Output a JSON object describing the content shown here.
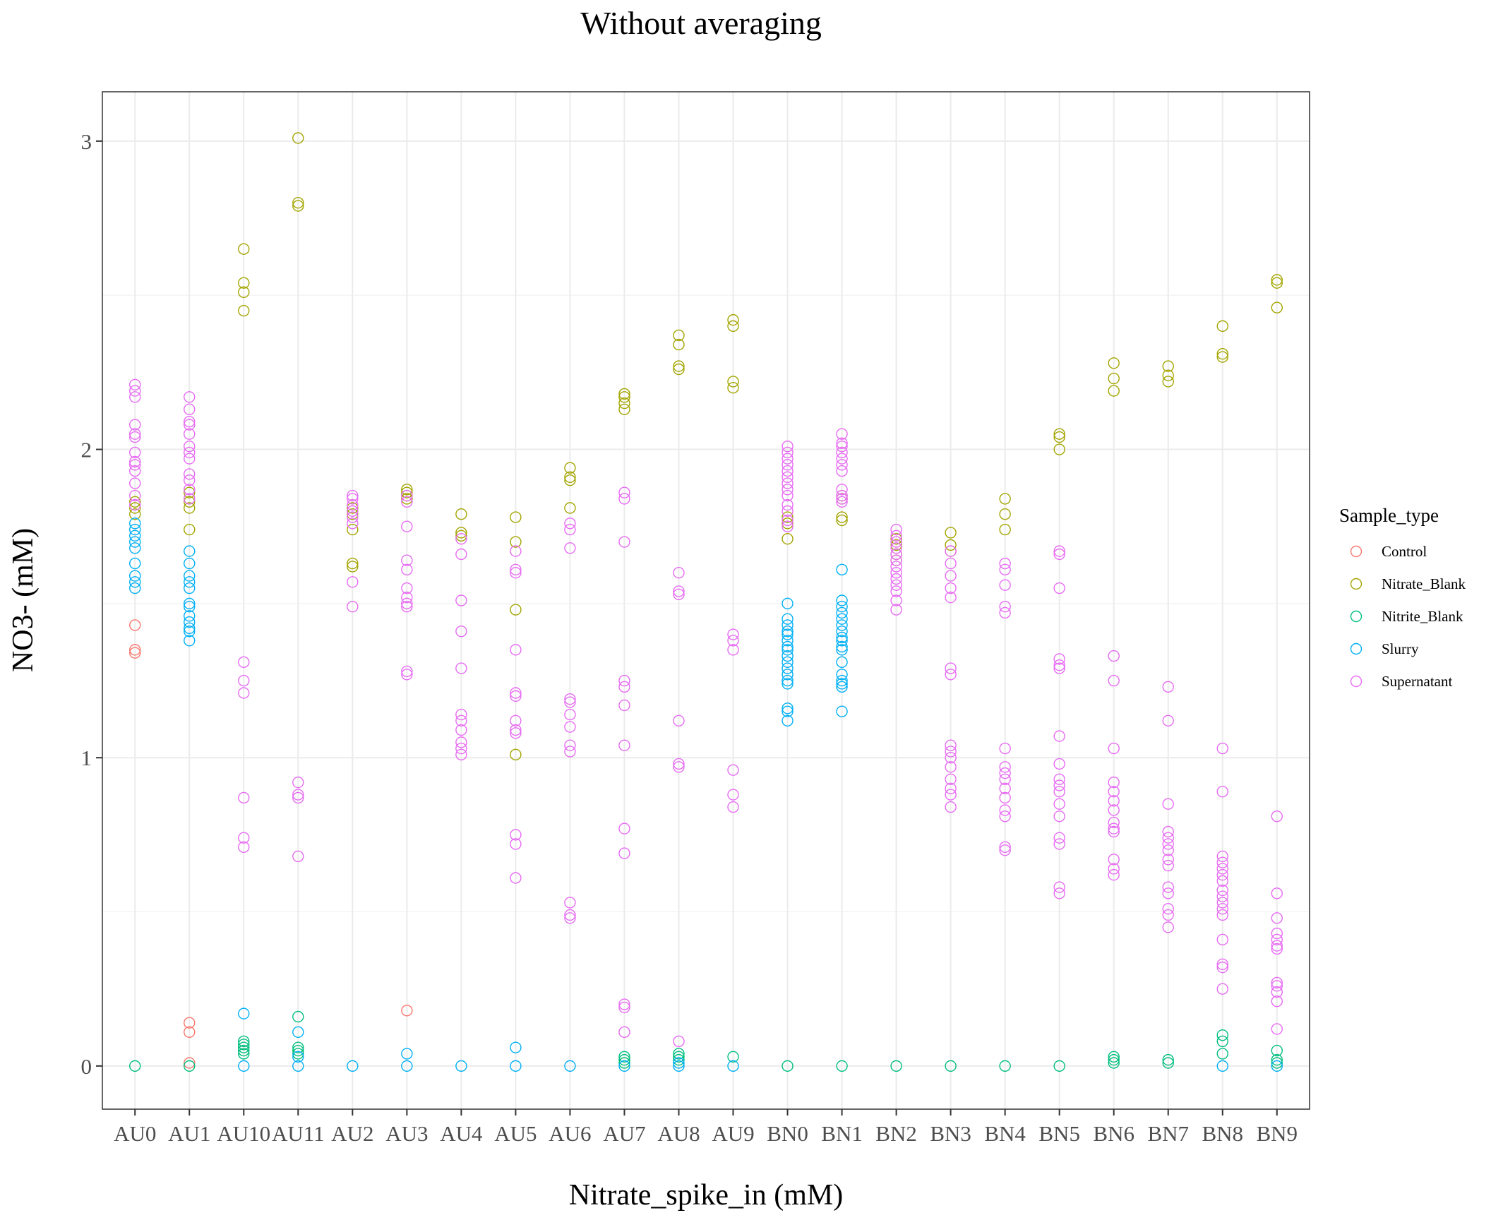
{
  "chart_data": {
    "type": "scatter",
    "title": "Without averaging",
    "xlabel": "Nitrate_spike_in (mM)",
    "ylabel": "NO3- (mM)",
    "ylim": [
      -0.14,
      3.16
    ],
    "yticks": [
      0,
      1,
      2,
      3
    ],
    "grid": true,
    "marker": "open-circle",
    "legend": {
      "title": "Sample_type",
      "placement": "right"
    },
    "categories": [
      "AU0",
      "AU1",
      "AU10",
      "AU11",
      "AU2",
      "AU3",
      "AU4",
      "AU5",
      "AU6",
      "AU7",
      "AU8",
      "AU9",
      "BN0",
      "BN1",
      "BN2",
      "BN3",
      "BN4",
      "BN5",
      "BN6",
      "BN7",
      "BN8",
      "BN9"
    ],
    "series": [
      {
        "name": "Control",
        "color": "#F8766D",
        "points": [
          {
            "x": "AU0",
            "values": [
              1.43,
              1.35,
              1.34
            ]
          },
          {
            "x": "AU1",
            "values": [
              0.14,
              0.11,
              0.01
            ]
          },
          {
            "x": "AU3",
            "values": [
              0.18
            ]
          }
        ]
      },
      {
        "name": "Nitrate_Blank",
        "color": "#A3A500",
        "points": [
          {
            "x": "AU0",
            "values": [
              1.83,
              1.81,
              1.79
            ]
          },
          {
            "x": "AU1",
            "values": [
              1.86,
              1.83,
              1.81,
              1.74
            ]
          },
          {
            "x": "AU10",
            "values": [
              2.65,
              2.54,
              2.51,
              2.45
            ]
          },
          {
            "x": "AU11",
            "values": [
              3.01,
              2.8,
              2.79
            ]
          },
          {
            "x": "AU2",
            "values": [
              1.81,
              1.79,
              1.74,
              1.63,
              1.62
            ]
          },
          {
            "x": "AU3",
            "values": [
              1.87,
              1.86,
              1.85,
              1.84
            ]
          },
          {
            "x": "AU4",
            "values": [
              1.79,
              1.73,
              1.72
            ]
          },
          {
            "x": "AU5",
            "values": [
              1.78,
              1.7,
              1.48,
              1.01
            ]
          },
          {
            "x": "AU6",
            "values": [
              1.94,
              1.91,
              1.9,
              1.81
            ]
          },
          {
            "x": "AU7",
            "values": [
              2.18,
              2.17,
              2.15,
              2.13
            ]
          },
          {
            "x": "AU8",
            "values": [
              2.37,
              2.34,
              2.27,
              2.26
            ]
          },
          {
            "x": "AU9",
            "values": [
              2.42,
              2.4,
              2.22,
              2.2
            ]
          },
          {
            "x": "BN0",
            "values": [
              1.78,
              1.76,
              1.71
            ]
          },
          {
            "x": "BN1",
            "values": [
              1.85,
              1.84,
              1.78,
              1.77
            ]
          },
          {
            "x": "BN2",
            "values": [
              1.71,
              1.69,
              1.66,
              1.64
            ]
          },
          {
            "x": "BN3",
            "values": [
              1.73,
              1.69,
              1.67
            ]
          },
          {
            "x": "BN4",
            "values": [
              1.84,
              1.79,
              1.74
            ]
          },
          {
            "x": "BN5",
            "values": [
              2.05,
              2.04,
              2.0
            ]
          },
          {
            "x": "BN6",
            "values": [
              2.28,
              2.23,
              2.19
            ]
          },
          {
            "x": "BN7",
            "values": [
              2.27,
              2.24,
              2.22
            ]
          },
          {
            "x": "BN8",
            "values": [
              2.4,
              2.31,
              2.3
            ]
          },
          {
            "x": "BN9",
            "values": [
              2.55,
              2.54,
              2.46
            ]
          }
        ]
      },
      {
        "name": "Nitrite_Blank",
        "color": "#00BF7D",
        "points": [
          {
            "x": "AU0",
            "values": [
              0.0
            ]
          },
          {
            "x": "AU1",
            "values": [
              0.0
            ]
          },
          {
            "x": "AU10",
            "values": [
              0.08,
              0.07,
              0.06,
              0.05,
              0.04
            ]
          },
          {
            "x": "AU11",
            "values": [
              0.16,
              0.06,
              0.05,
              0.04
            ]
          },
          {
            "x": "AU7",
            "values": [
              0.03,
              0.02,
              0.01
            ]
          },
          {
            "x": "AU8",
            "values": [
              0.04,
              0.03,
              0.02
            ]
          },
          {
            "x": "AU9",
            "values": [
              0.03
            ]
          },
          {
            "x": "BN0",
            "values": [
              0.0
            ]
          },
          {
            "x": "BN1",
            "values": [
              0.0
            ]
          },
          {
            "x": "BN2",
            "values": [
              0.0
            ]
          },
          {
            "x": "BN3",
            "values": [
              0.0
            ]
          },
          {
            "x": "BN4",
            "values": [
              0.0
            ]
          },
          {
            "x": "BN5",
            "values": [
              0.0
            ]
          },
          {
            "x": "BN6",
            "values": [
              0.03,
              0.02,
              0.01
            ]
          },
          {
            "x": "BN7",
            "values": [
              0.02,
              0.01
            ]
          },
          {
            "x": "BN8",
            "values": [
              0.1,
              0.08,
              0.04
            ]
          },
          {
            "x": "BN9",
            "values": [
              0.05,
              0.02,
              0.01
            ]
          }
        ]
      },
      {
        "name": "Slurry",
        "color": "#00B0F6",
        "points": [
          {
            "x": "AU0",
            "values": [
              1.76,
              1.74,
              1.72,
              1.7,
              1.68,
              1.63,
              1.59,
              1.57,
              1.55
            ]
          },
          {
            "x": "AU1",
            "values": [
              1.67,
              1.63,
              1.59,
              1.57,
              1.55,
              1.5,
              1.49,
              1.46,
              1.44,
              1.42,
              1.41,
              1.38
            ]
          },
          {
            "x": "AU10",
            "values": [
              0.17,
              0.0
            ]
          },
          {
            "x": "AU11",
            "values": [
              0.11,
              0.03,
              0.0
            ]
          },
          {
            "x": "AU2",
            "values": [
              0.0
            ]
          },
          {
            "x": "AU3",
            "values": [
              0.04,
              0.0
            ]
          },
          {
            "x": "AU4",
            "values": [
              0.0
            ]
          },
          {
            "x": "AU5",
            "values": [
              0.06,
              0.0
            ]
          },
          {
            "x": "AU6",
            "values": [
              0.0
            ]
          },
          {
            "x": "AU7",
            "values": [
              0.0
            ]
          },
          {
            "x": "AU8",
            "values": [
              0.01,
              0.0
            ]
          },
          {
            "x": "AU9",
            "values": [
              0.0
            ]
          },
          {
            "x": "BN0",
            "values": [
              1.5,
              1.45,
              1.43,
              1.41,
              1.4,
              1.38,
              1.36,
              1.35,
              1.33,
              1.31,
              1.29,
              1.27,
              1.25,
              1.24,
              1.16,
              1.15,
              1.12
            ]
          },
          {
            "x": "BN1",
            "values": [
              1.61,
              1.51,
              1.49,
              1.47,
              1.45,
              1.43,
              1.41,
              1.39,
              1.38,
              1.36,
              1.35,
              1.31,
              1.27,
              1.25,
              1.24,
              1.23,
              1.15
            ]
          },
          {
            "x": "BN8",
            "values": [
              0.0
            ]
          },
          {
            "x": "BN9",
            "values": [
              0.0
            ]
          }
        ]
      },
      {
        "name": "Supernatant",
        "color": "#E76BF3",
        "points": [
          {
            "x": "AU0",
            "values": [
              2.21,
              2.19,
              2.17,
              2.08,
              2.05,
              2.04,
              1.99,
              1.96,
              1.95,
              1.93,
              1.89,
              1.85,
              1.82
            ]
          },
          {
            "x": "AU1",
            "values": [
              2.17,
              2.13,
              2.09,
              2.08,
              2.05,
              2.01,
              1.99,
              1.97,
              1.92,
              1.9,
              1.87,
              1.84
            ]
          },
          {
            "x": "AU10",
            "values": [
              1.31,
              1.25,
              1.21,
              0.87,
              0.74,
              0.71
            ]
          },
          {
            "x": "AU11",
            "values": [
              0.92,
              0.88,
              0.87,
              0.68
            ]
          },
          {
            "x": "AU2",
            "values": [
              1.85,
              1.84,
              1.82,
              1.8,
              1.78,
              1.76,
              1.57,
              1.49
            ]
          },
          {
            "x": "AU3",
            "values": [
              1.85,
              1.83,
              1.75,
              1.64,
              1.61,
              1.55,
              1.52,
              1.5,
              1.49,
              1.28,
              1.27
            ]
          },
          {
            "x": "AU4",
            "values": [
              1.71,
              1.66,
              1.51,
              1.41,
              1.29,
              1.14,
              1.12,
              1.09,
              1.05,
              1.03,
              1.01
            ]
          },
          {
            "x": "AU5",
            "values": [
              1.67,
              1.61,
              1.6,
              1.35,
              1.21,
              1.2,
              1.12,
              1.09,
              1.08,
              0.75,
              0.72,
              0.61
            ]
          },
          {
            "x": "AU6",
            "values": [
              1.76,
              1.74,
              1.68,
              1.19,
              1.18,
              1.14,
              1.1,
              1.04,
              1.02,
              0.53,
              0.49,
              0.48
            ]
          },
          {
            "x": "AU7",
            "values": [
              1.86,
              1.84,
              1.7,
              1.25,
              1.23,
              1.17,
              1.04,
              0.77,
              0.69,
              0.2,
              0.19,
              0.11
            ]
          },
          {
            "x": "AU8",
            "values": [
              1.6,
              1.54,
              1.53,
              1.12,
              0.98,
              0.97,
              0.08
            ]
          },
          {
            "x": "AU9",
            "values": [
              1.4,
              1.38,
              1.35,
              0.96,
              0.88,
              0.84
            ]
          },
          {
            "x": "BN0",
            "values": [
              2.01,
              1.99,
              1.97,
              1.95,
              1.93,
              1.91,
              1.89,
              1.87,
              1.85,
              1.82,
              1.8,
              1.77,
              1.75
            ]
          },
          {
            "x": "BN1",
            "values": [
              2.05,
              2.02,
              2.01,
              1.99,
              1.97,
              1.95,
              1.93,
              1.87,
              1.85,
              1.84,
              1.83
            ]
          },
          {
            "x": "BN2",
            "values": [
              1.74,
              1.72,
              1.7,
              1.68,
              1.66,
              1.64,
              1.62,
              1.6,
              1.58,
              1.56,
              1.54,
              1.51,
              1.48
            ]
          },
          {
            "x": "BN3",
            "values": [
              1.67,
              1.63,
              1.59,
              1.55,
              1.52,
              1.29,
              1.27,
              1.04,
              1.02,
              1.0,
              0.97,
              0.93,
              0.9,
              0.88,
              0.84
            ]
          },
          {
            "x": "BN4",
            "values": [
              1.63,
              1.61,
              1.56,
              1.49,
              1.47,
              1.03,
              0.97,
              0.95,
              0.93,
              0.9,
              0.87,
              0.83,
              0.81,
              0.71,
              0.7
            ]
          },
          {
            "x": "BN5",
            "values": [
              1.67,
              1.66,
              1.55,
              1.32,
              1.3,
              1.29,
              1.07,
              0.98,
              0.93,
              0.91,
              0.89,
              0.85,
              0.81,
              0.74,
              0.72,
              0.58,
              0.56
            ]
          },
          {
            "x": "BN6",
            "values": [
              1.33,
              1.25,
              1.03,
              0.92,
              0.89,
              0.86,
              0.83,
              0.79,
              0.77,
              0.76,
              0.67,
              0.64,
              0.62
            ]
          },
          {
            "x": "BN7",
            "values": [
              1.23,
              1.12,
              0.85,
              0.76,
              0.74,
              0.72,
              0.7,
              0.67,
              0.65,
              0.58,
              0.56,
              0.51,
              0.49,
              0.45
            ]
          },
          {
            "x": "BN8",
            "values": [
              1.03,
              0.89,
              0.68,
              0.66,
              0.64,
              0.62,
              0.6,
              0.57,
              0.55,
              0.53,
              0.51,
              0.49,
              0.41,
              0.33,
              0.32,
              0.25
            ]
          },
          {
            "x": "BN9",
            "values": [
              0.81,
              0.56,
              0.48,
              0.43,
              0.41,
              0.39,
              0.38,
              0.27,
              0.26,
              0.24,
              0.21,
              0.12
            ]
          }
        ]
      }
    ]
  }
}
